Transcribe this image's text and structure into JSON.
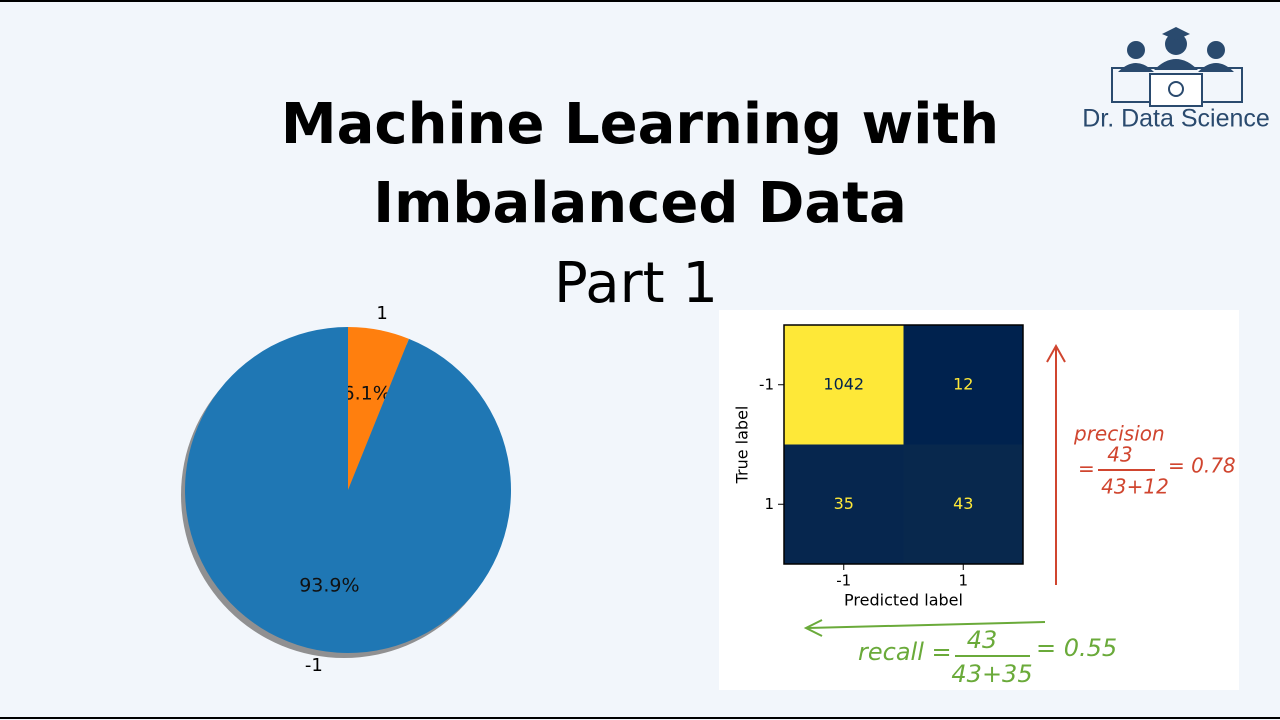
{
  "title_lines": [
    "Machine Learning with",
    "Imbalanced Data"
  ],
  "subtitle": "Part 1",
  "logo": "Dr. Data Science",
  "chart_data": [
    {
      "type": "pie",
      "categories": [
        "1",
        "-1"
      ],
      "values": [
        6.1,
        93.9
      ],
      "value_labels": [
        "6.1%",
        "93.9%"
      ],
      "colors": [
        "#ff7f0e",
        "#1f77b4"
      ],
      "shadow": true
    },
    {
      "type": "heatmap",
      "x_label": "Predicted label",
      "y_label": "True label",
      "x_categories": [
        "-1",
        "1"
      ],
      "y_categories": [
        "-1",
        "1"
      ],
      "values": [
        [
          1042,
          12
        ],
        [
          35,
          43
        ]
      ],
      "colormap": [
        "#00224e",
        "#fee838"
      ]
    }
  ],
  "annotations": {
    "precision": {
      "name": "precision",
      "eq": "=",
      "numerator": "43",
      "denominator": "43+12",
      "result": "= 0.78"
    },
    "recall": {
      "name": "recall =",
      "numerator": "43",
      "denominator": "43+35",
      "result": "= 0.55"
    }
  }
}
